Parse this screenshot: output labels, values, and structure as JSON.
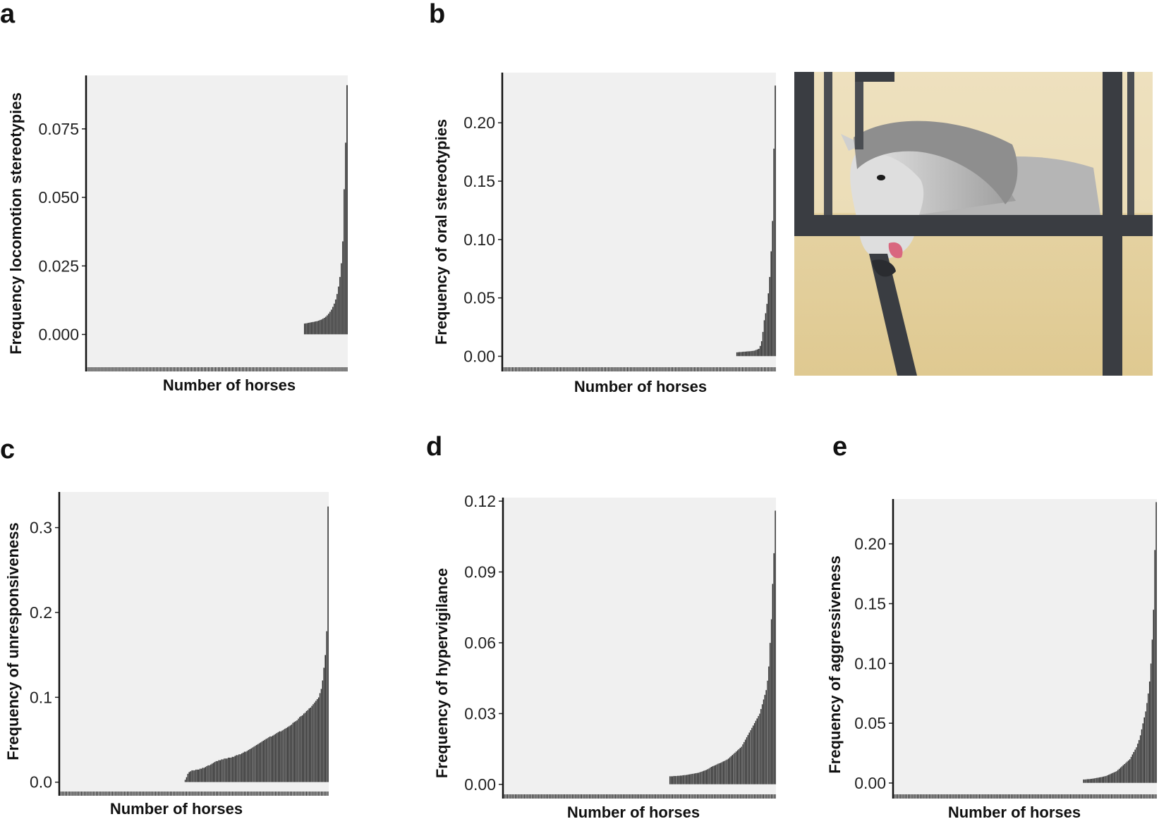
{
  "chart_data": [
    {
      "panel": "a",
      "type": "bar",
      "xlabel": "Number of horses",
      "ylabel": "Frequency locomotion stereotypies",
      "ylim": [
        -0.0135,
        0.0945
      ],
      "yticks": [
        0.0,
        0.025,
        0.05,
        0.075
      ],
      "ytick_labels": [
        "0.000",
        "0.025",
        "0.050",
        "0.075"
      ],
      "n_horses": 185,
      "values": [
        0.004,
        0.0041,
        0.0042,
        0.0043,
        0.0044,
        0.0045,
        0.0046,
        0.0047,
        0.0048,
        0.0049,
        0.0051,
        0.0053,
        0.0055,
        0.0058,
        0.0061,
        0.0065,
        0.007,
        0.0076,
        0.0083,
        0.0091,
        0.0101,
        0.0113,
        0.0128,
        0.0148,
        0.0175,
        0.021,
        0.026,
        0.034,
        0.053,
        0.07,
        0.091
      ]
    },
    {
      "panel": "b",
      "type": "bar",
      "xlabel": "Number of horses",
      "ylabel": "Frequency of oral stereotypies",
      "ylim": [
        -0.013,
        0.243
      ],
      "yticks": [
        0.0,
        0.05,
        0.1,
        0.15,
        0.2
      ],
      "ytick_labels": [
        "0.00",
        "0.05",
        "0.10",
        "0.15",
        "0.20"
      ],
      "n_horses": 200,
      "values": [
        0.0035,
        0.0036,
        0.0037,
        0.0038,
        0.0039,
        0.004,
        0.0041,
        0.0042,
        0.0043,
        0.0044,
        0.0045,
        0.0046,
        0.0048,
        0.005,
        0.0055,
        0.006,
        0.0065,
        0.009,
        0.013,
        0.021,
        0.031,
        0.037,
        0.045,
        0.054,
        0.068,
        0.09,
        0.116,
        0.178,
        0.232
      ]
    },
    {
      "panel": "c",
      "type": "bar",
      "xlabel": "Number of horses",
      "ylabel": "Frequency of unresponsiveness",
      "ylim": [
        -0.016,
        0.342
      ],
      "yticks": [
        0.0,
        0.1,
        0.2,
        0.3
      ],
      "ytick_labels": [
        "0.0",
        "0.1",
        "0.2",
        "0.3"
      ],
      "n_horses": 200,
      "values": [
        0.003,
        0.006,
        0.01,
        0.012,
        0.013,
        0.014,
        0.014,
        0.014,
        0.015,
        0.015,
        0.015,
        0.016,
        0.016,
        0.017,
        0.017,
        0.018,
        0.019,
        0.02,
        0.02,
        0.021,
        0.022,
        0.023,
        0.024,
        0.025,
        0.025,
        0.026,
        0.026,
        0.027,
        0.027,
        0.028,
        0.028,
        0.028,
        0.029,
        0.029,
        0.029,
        0.03,
        0.03,
        0.031,
        0.032,
        0.032,
        0.033,
        0.033,
        0.034,
        0.035,
        0.036,
        0.036,
        0.037,
        0.038,
        0.039,
        0.04,
        0.041,
        0.042,
        0.043,
        0.044,
        0.045,
        0.046,
        0.047,
        0.048,
        0.049,
        0.05,
        0.051,
        0.052,
        0.053,
        0.054,
        0.054,
        0.055,
        0.056,
        0.057,
        0.058,
        0.059,
        0.06,
        0.06,
        0.061,
        0.062,
        0.063,
        0.064,
        0.065,
        0.066,
        0.067,
        0.068,
        0.07,
        0.071,
        0.072,
        0.073,
        0.075,
        0.077,
        0.078,
        0.079,
        0.081,
        0.082,
        0.084,
        0.085,
        0.087,
        0.088,
        0.09,
        0.092,
        0.094,
        0.096,
        0.098,
        0.1,
        0.105,
        0.11,
        0.12,
        0.135,
        0.15,
        0.178,
        0.325
      ]
    },
    {
      "panel": "d",
      "type": "bar",
      "xlabel": "Number of horses",
      "ylabel": "Frequency of hypervigilance",
      "ylim": [
        -0.006,
        0.1215
      ],
      "yticks": [
        0.0,
        0.03,
        0.06,
        0.09,
        0.12
      ],
      "ytick_labels": [
        "0.00",
        "0.03",
        "0.06",
        "0.09",
        "0.12"
      ],
      "n_horses": 210,
      "values": [
        0.0035,
        0.0035,
        0.0035,
        0.0036,
        0.0036,
        0.0036,
        0.0037,
        0.0037,
        0.0038,
        0.0038,
        0.0039,
        0.004,
        0.004,
        0.0041,
        0.0042,
        0.0043,
        0.0044,
        0.0045,
        0.0046,
        0.0047,
        0.0048,
        0.0049,
        0.005,
        0.0052,
        0.0054,
        0.0056,
        0.0058,
        0.006,
        0.0062,
        0.0065,
        0.0068,
        0.0072,
        0.0075,
        0.0078,
        0.008,
        0.0082,
        0.0085,
        0.0088,
        0.009,
        0.0092,
        0.0095,
        0.0098,
        0.01,
        0.0103,
        0.0106,
        0.011,
        0.0115,
        0.012,
        0.0125,
        0.013,
        0.0135,
        0.014,
        0.0145,
        0.015,
        0.0155,
        0.016,
        0.017,
        0.018,
        0.019,
        0.02,
        0.021,
        0.022,
        0.023,
        0.024,
        0.025,
        0.026,
        0.027,
        0.028,
        0.029,
        0.03,
        0.032,
        0.034,
        0.036,
        0.038,
        0.04,
        0.044,
        0.05,
        0.06,
        0.07,
        0.085,
        0.098,
        0.116
      ]
    },
    {
      "panel": "e",
      "type": "bar",
      "xlabel": "Number of horses",
      "ylabel": "Frequency of aggressiveness",
      "ylim": [
        -0.013,
        0.2375
      ],
      "yticks": [
        0.0,
        0.05,
        0.1,
        0.15,
        0.2
      ],
      "ytick_labels": [
        "0.00",
        "0.05",
        "0.10",
        "0.15",
        "0.20"
      ],
      "n_horses": 200,
      "values": [
        0.003,
        0.003,
        0.0032,
        0.0033,
        0.0034,
        0.0035,
        0.0036,
        0.0038,
        0.004,
        0.0042,
        0.0044,
        0.0046,
        0.0048,
        0.005,
        0.0052,
        0.0055,
        0.0058,
        0.006,
        0.0065,
        0.007,
        0.0075,
        0.008,
        0.0085,
        0.009,
        0.0095,
        0.01,
        0.011,
        0.012,
        0.013,
        0.014,
        0.015,
        0.016,
        0.017,
        0.018,
        0.019,
        0.02,
        0.022,
        0.024,
        0.026,
        0.028,
        0.03,
        0.033,
        0.036,
        0.04,
        0.045,
        0.05,
        0.055,
        0.06,
        0.067,
        0.075,
        0.085,
        0.1,
        0.12,
        0.145,
        0.195,
        0.235
      ]
    }
  ],
  "panels": {
    "a": {
      "letter": "a"
    },
    "b": {
      "letter": "b"
    },
    "c": {
      "letter": "c"
    },
    "d": {
      "letter": "d"
    },
    "e": {
      "letter": "e"
    }
  },
  "illustration": {
    "subject": "grey horse in a stable stall biting the stall bars (crib-biting / oral stereotypy)",
    "colors": {
      "wall": "#e6d5a8",
      "bars": "#3a3d42",
      "horse": "#c9c9c9",
      "mane": "#8e8e8e",
      "tongue": "#d9677f"
    }
  }
}
